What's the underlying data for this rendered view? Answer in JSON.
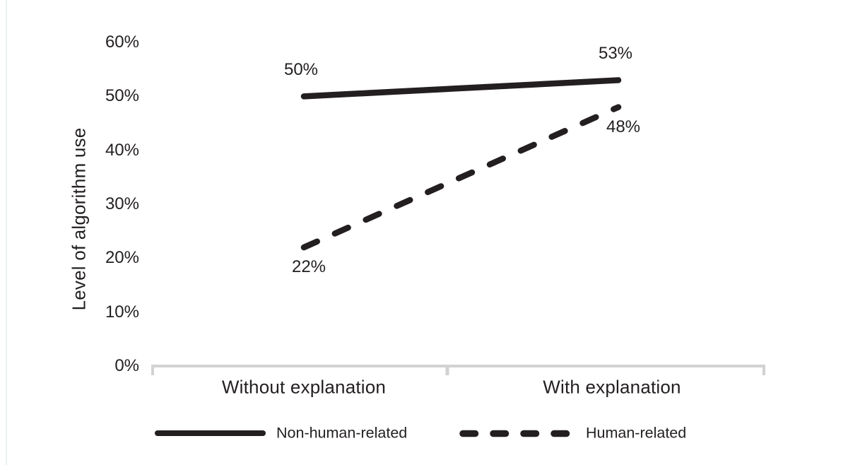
{
  "chart_data": {
    "type": "line",
    "title": "",
    "xlabel": "",
    "ylabel": "Level of algorithm use",
    "categories": [
      "Without explanation",
      "With explanation"
    ],
    "series": [
      {
        "name": "Non-human-related",
        "line_style": "solid",
        "values": [
          50,
          53
        ],
        "data_labels": [
          "50%",
          "53%"
        ],
        "label_side": "above"
      },
      {
        "name": "Human-related",
        "line_style": "dashed",
        "values": [
          22,
          48
        ],
        "data_labels": [
          "22%",
          "48%"
        ],
        "label_side": "below"
      }
    ],
    "y_axis": {
      "range": [
        0,
        60
      ],
      "ticks": [
        {
          "value": 0,
          "label": "0%"
        },
        {
          "value": 10,
          "label": "10%"
        },
        {
          "value": 20,
          "label": "20%"
        },
        {
          "value": 30,
          "label": "30%"
        },
        {
          "value": 40,
          "label": "40%"
        },
        {
          "value": 50,
          "label": "50%"
        },
        {
          "value": 60,
          "label": "60%"
        }
      ]
    },
    "grid": "off",
    "legend_position": "bottom",
    "colors": {
      "ink": "#231f20",
      "axis": "#d2d2d4",
      "background": "#ffffff"
    }
  }
}
